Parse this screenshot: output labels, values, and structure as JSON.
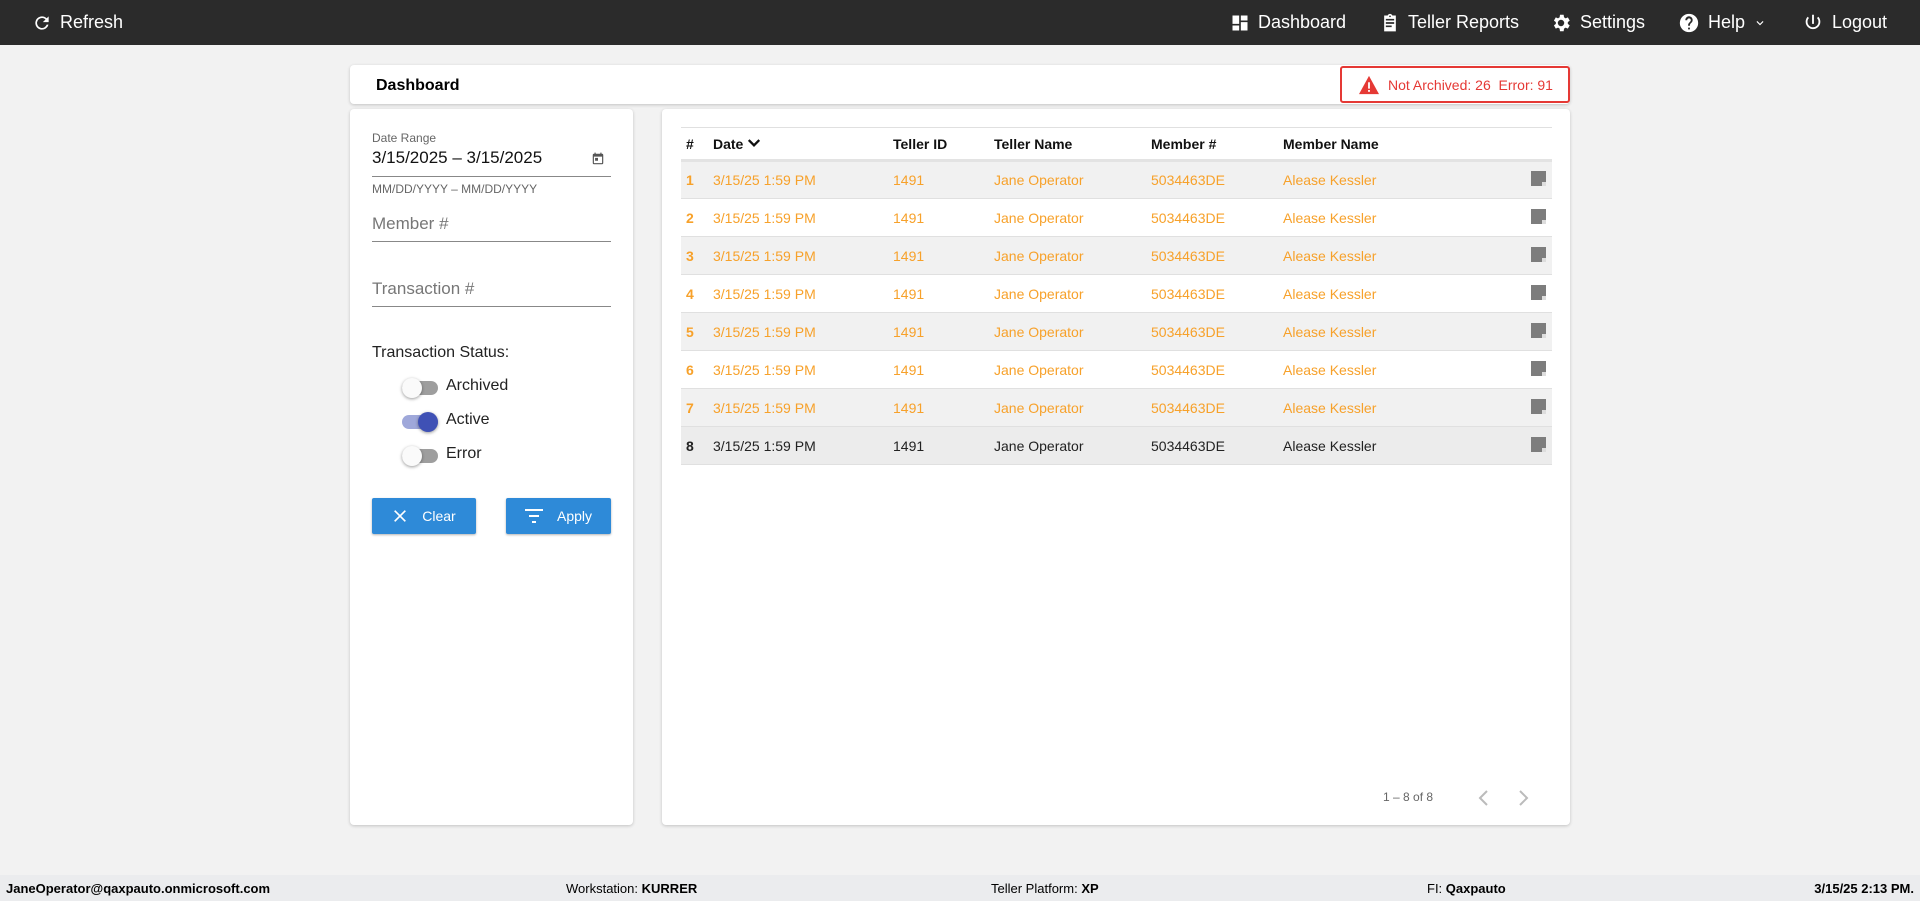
{
  "topbar": {
    "refresh": "Refresh",
    "items": [
      {
        "label": "Dashboard",
        "icon": "dashboard-icon"
      },
      {
        "label": "Teller Reports",
        "icon": "clipboard-icon"
      },
      {
        "label": "Settings",
        "icon": "gear-icon"
      },
      {
        "label": "Help",
        "icon": "help-icon"
      },
      {
        "label": "Logout",
        "icon": "power-icon"
      }
    ]
  },
  "header": {
    "title": "Dashboard",
    "alert": "Not Archived: 26  Error: 91",
    "alert_color": "#e53935"
  },
  "filters": {
    "date_range_label": "Date Range",
    "date_range_value": "3/15/2025 – 3/15/2025",
    "date_hint": "MM/DD/YYYY – MM/DD/YYYY",
    "member_placeholder": "Member #",
    "transaction_placeholder": "Transaction #",
    "status_label": "Transaction Status:",
    "toggles": [
      {
        "label": "Archived",
        "on": false
      },
      {
        "label": "Active",
        "on": true
      },
      {
        "label": "Error",
        "on": false
      }
    ],
    "clear": "Clear",
    "apply": "Apply"
  },
  "table": {
    "headers": [
      "#",
      "Date",
      "Teller ID",
      "Teller Name",
      "Member #",
      "Member Name"
    ],
    "rows": [
      {
        "n": "1",
        "date": "3/15/25 1:59 PM",
        "teller_id": "1491",
        "teller_name": "Jane Operator",
        "member": "5034463DE",
        "member_name": "Alease Kessler",
        "status": "orange"
      },
      {
        "n": "2",
        "date": "3/15/25 1:59 PM",
        "teller_id": "1491",
        "teller_name": "Jane Operator",
        "member": "5034463DE",
        "member_name": "Alease Kessler",
        "status": "orange"
      },
      {
        "n": "3",
        "date": "3/15/25 1:59 PM",
        "teller_id": "1491",
        "teller_name": "Jane Operator",
        "member": "5034463DE",
        "member_name": "Alease Kessler",
        "status": "orange"
      },
      {
        "n": "4",
        "date": "3/15/25 1:59 PM",
        "teller_id": "1491",
        "teller_name": "Jane Operator",
        "member": "5034463DE",
        "member_name": "Alease Kessler",
        "status": "orange"
      },
      {
        "n": "5",
        "date": "3/15/25 1:59 PM",
        "teller_id": "1491",
        "teller_name": "Jane Operator",
        "member": "5034463DE",
        "member_name": "Alease Kessler",
        "status": "orange"
      },
      {
        "n": "6",
        "date": "3/15/25 1:59 PM",
        "teller_id": "1491",
        "teller_name": "Jane Operator",
        "member": "5034463DE",
        "member_name": "Alease Kessler",
        "status": "orange"
      },
      {
        "n": "7",
        "date": "3/15/25 1:59 PM",
        "teller_id": "1491",
        "teller_name": "Jane Operator",
        "member": "5034463DE",
        "member_name": "Alease Kessler",
        "status": "orange"
      },
      {
        "n": "8",
        "date": "3/15/25 1:59 PM",
        "teller_id": "1491",
        "teller_name": "Jane Operator",
        "member": "5034463DE",
        "member_name": "Alease Kessler",
        "status": "normal"
      }
    ],
    "pagination": "1 – 8 of 8",
    "orange_color": "#f7a12a"
  },
  "footer": {
    "user": "JaneOperator@qaxpauto.onmicrosoft.com",
    "workstation_label": "Workstation:",
    "workstation": "KURRER",
    "platform_label": "Teller Platform:",
    "platform": "XP",
    "fi_label": "FI:",
    "fi": "Qaxpauto",
    "datetime": "3/15/25 2:13 PM."
  }
}
